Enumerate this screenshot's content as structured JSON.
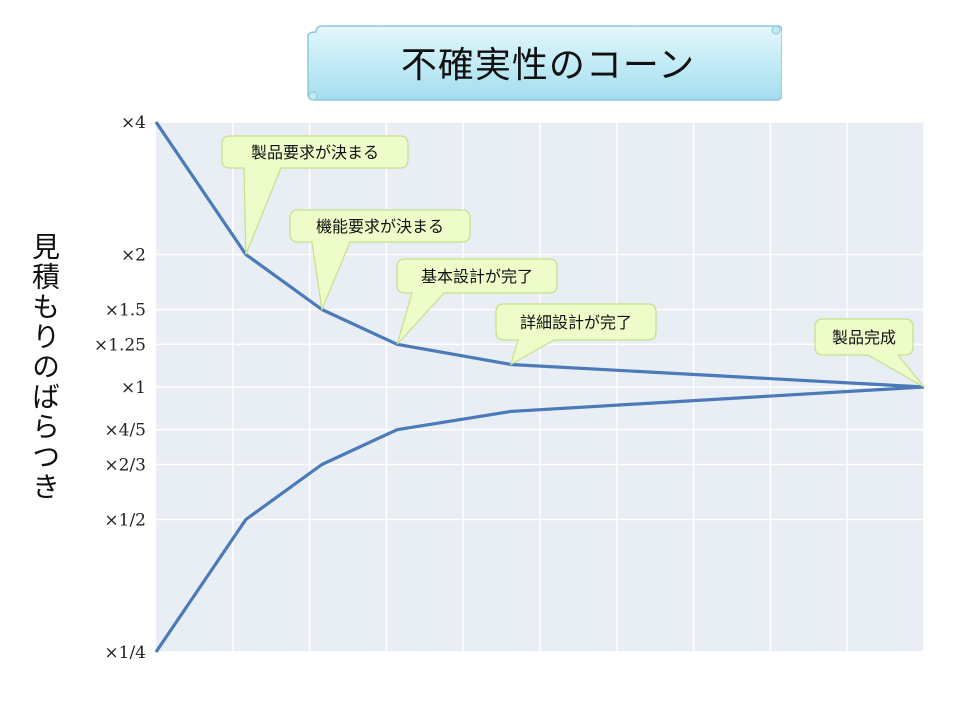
{
  "chart_data": {
    "type": "line",
    "title": "不確実性のコーン",
    "ylabel": "見積もりのばらつき",
    "xlabel": "",
    "y_scale": "log2",
    "ylim": [
      0.25,
      4
    ],
    "y_ticks": [
      {
        "value": 4,
        "label": "×4"
      },
      {
        "value": 2,
        "label": "×2"
      },
      {
        "value": 1.5,
        "label": "×1.5"
      },
      {
        "value": 1.25,
        "label": "×1.25"
      },
      {
        "value": 1,
        "label": "×1"
      },
      {
        "value": 0.8,
        "label": "×4/5"
      },
      {
        "value": 0.6667,
        "label": "×2/3"
      },
      {
        "value": 0.5,
        "label": "×1/2"
      },
      {
        "value": 0.25,
        "label": "×1/4"
      }
    ],
    "grid": true,
    "x": [
      0,
      0.117,
      0.216,
      0.314,
      0.462,
      1
    ],
    "series": [
      {
        "values": [
          4,
          2,
          1.5,
          1.25,
          1.125,
          1
        ],
        "color": "#4a7ab8"
      },
      {
        "values": [
          0.25,
          0.5,
          0.6667,
          0.8,
          0.88,
          1
        ],
        "color": "#4a7ab8"
      }
    ],
    "annotations": [
      {
        "text": "製品要求が決まる",
        "point": 1
      },
      {
        "text": "機能要求が決まる",
        "point": 2
      },
      {
        "text": "基本設計が完了",
        "point": 3
      },
      {
        "text": "詳細設計が完了",
        "point": 4
      },
      {
        "text": "製品完成",
        "point": 5
      }
    ]
  }
}
